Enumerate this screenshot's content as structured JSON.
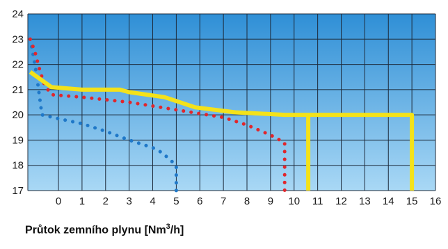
{
  "chart_data": {
    "type": "line",
    "xlabel": "Průtok zemního plynu [Nm",
    "xlabel_sup": "3",
    "xlabel_tail": "/h]",
    "ylabel": "",
    "title": "",
    "xlim": [
      -1.3,
      16
    ],
    "ylim": [
      17,
      24
    ],
    "x_ticks": [
      0,
      1,
      2,
      3,
      4,
      5,
      6,
      7,
      8,
      9,
      10,
      11,
      12,
      13,
      14,
      15,
      16
    ],
    "y_ticks": [
      17,
      18,
      19,
      20,
      21,
      22,
      23,
      24
    ],
    "grid": true,
    "colors": {
      "background_top": "#2f8fd6",
      "background_bottom": "#a9d8f5",
      "grid": "#1d2a3a",
      "blue_series": "#1f78c8",
      "red_series": "#e0262c",
      "yellow_series": "#f4e21a"
    },
    "series": [
      {
        "style": "dotted",
        "color": "#1f78c8",
        "points": [
          [
            -1.2,
            23.0
          ],
          [
            -1.1,
            22.5
          ],
          [
            -1.0,
            22.0
          ],
          [
            -0.9,
            21.4
          ],
          [
            -0.8,
            20.7
          ],
          [
            -0.7,
            20.0
          ],
          [
            0,
            19.85
          ],
          [
            1,
            19.65
          ],
          [
            2,
            19.35
          ],
          [
            3,
            19.0
          ],
          [
            4,
            18.7
          ],
          [
            4.4,
            18.5
          ],
          [
            5.0,
            18.0
          ],
          [
            5.0,
            17.5
          ],
          [
            5.0,
            17.0
          ]
        ]
      },
      {
        "style": "dotted",
        "color": "#e0262c",
        "points": [
          [
            -1.2,
            23.0
          ],
          [
            -1.0,
            22.5
          ],
          [
            -0.8,
            21.8
          ],
          [
            -0.6,
            21.2
          ],
          [
            -0.3,
            20.8
          ],
          [
            1,
            20.7
          ],
          [
            3,
            20.5
          ],
          [
            5,
            20.2
          ],
          [
            7,
            19.9
          ],
          [
            8,
            19.6
          ],
          [
            9,
            19.2
          ],
          [
            9.6,
            18.9
          ],
          [
            9.6,
            18.0
          ],
          [
            9.6,
            17.0
          ]
        ]
      },
      {
        "style": "solid",
        "color": "#f4e21a",
        "segments": [
          [
            [
              -1.2,
              21.7
            ],
            [
              -0.3,
              21.1
            ],
            [
              1,
              21.0
            ],
            [
              2.6,
              21.0
            ],
            [
              3,
              20.9
            ],
            [
              4.5,
              20.7
            ],
            [
              5.8,
              20.3
            ],
            [
              7.5,
              20.1
            ],
            [
              9.6,
              20.0
            ],
            [
              10.5,
              20.0
            ],
            [
              15,
              20.0
            ],
            [
              15,
              17.0
            ]
          ],
          [
            [
              10.6,
              20.0
            ],
            [
              10.6,
              17.0
            ]
          ]
        ]
      }
    ]
  }
}
